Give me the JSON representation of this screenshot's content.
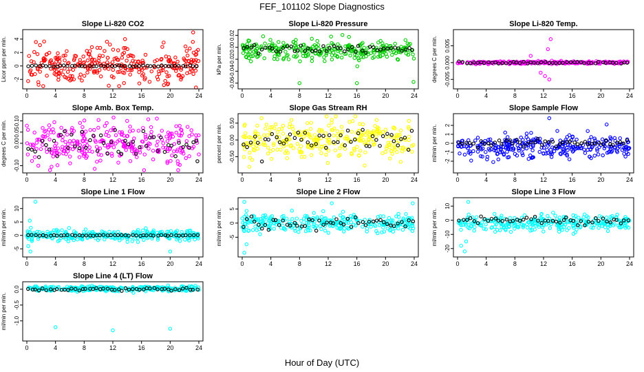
{
  "title": "FEF_101102  Slope Diagnostics",
  "xlabel": "Hour of Day (UTC)",
  "colors": {
    "black": "#000000",
    "red": "#ff0000",
    "green": "#00cc00",
    "magenta": "#ff00ff",
    "yellow": "#ffff00",
    "blue": "#0000ff",
    "cyan": "#00ffff"
  },
  "chart_data": [
    {
      "type": "scatter",
      "title": "Slope Li-820 CO2",
      "ylabel": "Licor ppm per min.",
      "xlim": [
        0,
        24
      ],
      "ylim": [
        -3,
        5
      ],
      "xticks": [
        "0",
        "4",
        "8",
        "12",
        "16",
        "20",
        "24"
      ],
      "yticks": [
        "-2",
        "0",
        "2",
        "4"
      ],
      "ytick_values": [
        -2,
        0,
        2,
        4
      ],
      "series": [
        {
          "name": "all",
          "color": "red",
          "spread": 1.3,
          "center": 0.1,
          "outliers": [
            [
              1.6,
              -2.4
            ],
            [
              13.7,
              4.0
            ],
            [
              23.2,
              5.0
            ],
            [
              23.6,
              -3.2
            ]
          ]
        },
        {
          "name": "hourly",
          "color": "black",
          "spread": 0.05,
          "center": 0.0,
          "outliers": []
        }
      ]
    },
    {
      "type": "scatter",
      "title": "Slope Li-820 Pressure",
      "ylabel": "kPa per min.",
      "xlim": [
        0,
        24
      ],
      "ylim": [
        -0.065,
        0.025
      ],
      "xticks": [
        "0",
        "4",
        "8",
        "12",
        "16",
        "20",
        "24"
      ],
      "yticks": [
        "-0.06",
        "-0.04",
        "-0.02",
        "0.00",
        "0.02"
      ],
      "ytick_values": [
        -0.06,
        -0.04,
        -0.02,
        0.0,
        0.02
      ],
      "series": [
        {
          "name": "all",
          "color": "green",
          "spread": 0.008,
          "center": -0.005,
          "outliers": [
            [
              8.0,
              -0.06
            ],
            [
              16.0,
              -0.06
            ],
            [
              23.9,
              -0.058
            ],
            [
              12.4,
              0.018
            ]
          ]
        },
        {
          "name": "hourly",
          "color": "black",
          "spread": 0.004,
          "center": -0.002,
          "outliers": []
        }
      ]
    },
    {
      "type": "scatter",
      "title": "Slope Li-820 Temp.",
      "ylabel": "degrees C per min.",
      "xlim": [
        0,
        24
      ],
      "ylim": [
        -0.007,
        0.009
      ],
      "xticks": [
        "0",
        "4",
        "8",
        "12",
        "16",
        "20",
        "24"
      ],
      "yticks": [
        "-0.005",
        "0.000",
        "0.005"
      ],
      "ytick_values": [
        -0.005,
        0.0,
        0.005
      ],
      "series": [
        {
          "name": "all",
          "color": "magenta",
          "spread": 0.0002,
          "center": 0.0,
          "outliers": [
            [
              12.6,
              0.004
            ],
            [
              13.0,
              0.007
            ],
            [
              12.8,
              -0.005
            ],
            [
              11.6,
              -0.003
            ],
            [
              10.2,
              0.002
            ],
            [
              12.2,
              -0.004
            ]
          ]
        },
        {
          "name": "hourly",
          "color": "black",
          "spread": 0.0002,
          "center": 0.0,
          "outliers": []
        }
      ]
    },
    {
      "type": "scatter",
      "title": "Slope Amb. Box Temp.",
      "ylabel": "degrees C per min.",
      "xlim": [
        0,
        24
      ],
      "ylim": [
        -0.12,
        0.12
      ],
      "xticks": [
        "0",
        "4",
        "8",
        "12",
        "16",
        "20",
        "24"
      ],
      "yticks": [
        "-0.10",
        "0.00",
        "0.05",
        "0.10"
      ],
      "ytick_values": [
        -0.1,
        0.0,
        0.05,
        0.1
      ],
      "series": [
        {
          "name": "all",
          "color": "magenta",
          "spread": 0.045,
          "center": 0.005,
          "outliers": [
            [
              1.6,
              -0.1
            ],
            [
              14.0,
              0.1
            ]
          ]
        },
        {
          "name": "hourly",
          "color": "black",
          "spread": 0.03,
          "center": 0.0,
          "outliers": [
            [
              23.8,
              -0.08
            ]
          ]
        }
      ]
    },
    {
      "type": "scatter",
      "title": "Slope Gas Stream RH",
      "ylabel": "percent per min.",
      "xlim": [
        0,
        24
      ],
      "ylim": [
        -0.9,
        0.7
      ],
      "xticks": [
        "0",
        "4",
        "8",
        "12",
        "16",
        "20",
        "24"
      ],
      "yticks": [
        "-0.50",
        "0.00",
        "0.50"
      ],
      "ytick_values": [
        -0.5,
        0.0,
        0.5
      ],
      "series": [
        {
          "name": "all",
          "color": "yellow",
          "spread": 0.3,
          "center": 0.0,
          "outliers": [
            [
              1.0,
              -0.8
            ],
            [
              12.5,
              0.6
            ]
          ]
        },
        {
          "name": "hourly",
          "color": "black",
          "spread": 0.2,
          "center": 0.0,
          "outliers": []
        }
      ]
    },
    {
      "type": "scatter",
      "title": "Slope Sample Flow",
      "ylabel": "ml/min per min.",
      "xlim": [
        0,
        24
      ],
      "ylim": [
        -3,
        3
      ],
      "xticks": [
        "0",
        "4",
        "8",
        "12",
        "16",
        "20",
        "24"
      ],
      "yticks": [
        "-2",
        "-1",
        "0",
        "1",
        "2"
      ],
      "ytick_values": [
        -2,
        -1,
        0,
        1,
        2
      ],
      "series": [
        {
          "name": "all",
          "color": "blue",
          "spread": 0.6,
          "center": -0.4,
          "outliers": [
            [
              12.8,
              2.8
            ],
            [
              20.8,
              2.1
            ]
          ]
        },
        {
          "name": "hourly",
          "color": "black",
          "spread": 0.2,
          "center": 0.0,
          "outliers": []
        }
      ]
    },
    {
      "type": "scatter",
      "title": "Slope Line 1 Flow",
      "ylabel": "ml/min per min.",
      "xlim": [
        0,
        24
      ],
      "ylim": [
        -7,
        13
      ],
      "xticks": [
        "0",
        "4",
        "8",
        "12",
        "16",
        "20",
        "24"
      ],
      "yticks": [
        "-5",
        "0",
        "5",
        "10"
      ],
      "ytick_values": [
        -5,
        0,
        5,
        10
      ],
      "series": [
        {
          "name": "all",
          "color": "cyan",
          "spread": 1.0,
          "center": 0.0,
          "outliers": [
            [
              1.2,
              12.5
            ],
            [
              0.5,
              -6.0
            ],
            [
              0.2,
              -4.0
            ],
            [
              20.0,
              -6.0
            ],
            [
              0.4,
              5.5
            ]
          ]
        },
        {
          "name": "hourly",
          "color": "black",
          "spread": 0.1,
          "center": 0.0,
          "outliers": []
        }
      ]
    },
    {
      "type": "scatter",
      "title": "Slope Line 2 Flow",
      "ylabel": "ml/min per min.",
      "xlim": [
        0,
        24
      ],
      "ylim": [
        -11,
        8
      ],
      "xticks": [
        "0",
        "4",
        "8",
        "12",
        "16",
        "20",
        "24"
      ],
      "yticks": [
        "-5",
        "0",
        "5"
      ],
      "ytick_values": [
        -5,
        0,
        5
      ],
      "series": [
        {
          "name": "all",
          "color": "cyan",
          "spread": 1.6,
          "center": 0.0,
          "outliers": [
            [
              0.3,
              7.5
            ],
            [
              12.5,
              7.0
            ],
            [
              0.3,
              -10.5
            ],
            [
              0.6,
              -7.5
            ],
            [
              23.8,
              7.0
            ]
          ]
        },
        {
          "name": "hourly",
          "color": "black",
          "spread": 1.0,
          "center": 0.0,
          "outliers": []
        }
      ]
    },
    {
      "type": "scatter",
      "title": "Slope Line 3 Flow",
      "ylabel": "ml/min per min.",
      "xlim": [
        0,
        24
      ],
      "ylim": [
        -24,
        14
      ],
      "xticks": [
        "0",
        "4",
        "8",
        "12",
        "16",
        "20",
        "24"
      ],
      "yticks": [
        "-20",
        "-10",
        "0",
        "10"
      ],
      "ytick_values": [
        -20,
        -10,
        0,
        10
      ],
      "series": [
        {
          "name": "all",
          "color": "cyan",
          "spread": 2.8,
          "center": -2.0,
          "outliers": [
            [
              1.0,
              -22.0
            ],
            [
              1.5,
              13.0
            ],
            [
              0.5,
              -18.0
            ],
            [
              1.2,
              -15.0
            ]
          ]
        },
        {
          "name": "hourly",
          "color": "black",
          "spread": 1.2,
          "center": 0.0,
          "outliers": []
        }
      ]
    },
    {
      "type": "scatter",
      "title": "Slope Line 4 (LT) Flow",
      "ylabel": "ml/min per min.",
      "xlim": [
        0,
        24
      ],
      "ylim": [
        -1.55,
        0.15
      ],
      "xticks": [
        "0",
        "4",
        "8",
        "12",
        "16",
        "20",
        "24"
      ],
      "yticks": [
        "-1.0",
        "-0.5",
        "0.0"
      ],
      "ytick_values": [
        -1.0,
        -0.5,
        0.0
      ],
      "series": [
        {
          "name": "all",
          "color": "cyan",
          "spread": 0.04,
          "center": 0.02,
          "outliers": [
            [
              4.0,
              -1.2
            ],
            [
              12.0,
              -1.3
            ],
            [
              20.0,
              -1.25
            ]
          ]
        },
        {
          "name": "hourly",
          "color": "black",
          "spread": 0.02,
          "center": 0.0,
          "outliers": []
        }
      ]
    }
  ]
}
